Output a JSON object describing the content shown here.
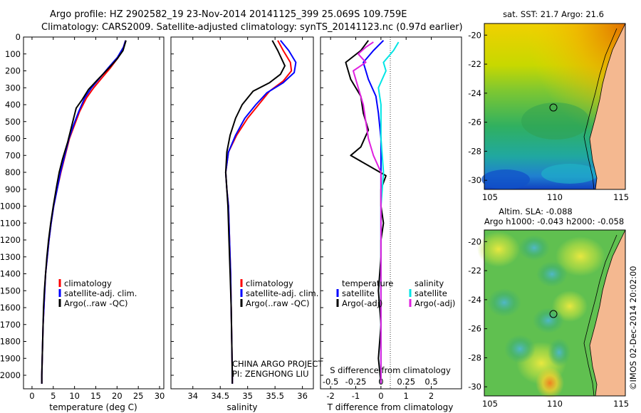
{
  "header": {
    "line1": "Argo profile: HZ 2902582_19 23-Nov-2014 20141125_399 25.069S 109.759E",
    "line2": "Climatology: CARS2009. Satellite-adjusted climatology: synTS_20141123.nc (0.97d earlier)"
  },
  "colors": {
    "climatology": "#ff0000",
    "satellite": "#0000ff",
    "argo": "#000000",
    "sat_salinity": "#00e5e5",
    "argo_salinity": "#e020e0",
    "land": "#f4b890"
  },
  "chart_data": [
    {
      "id": "temperature",
      "type": "line",
      "xlabel": "temperature (deg C)",
      "ylabel": "",
      "xlim": [
        -2,
        31
      ],
      "ylim": [
        2080,
        0
      ],
      "xticks": [
        0,
        5,
        10,
        15,
        20,
        25,
        30
      ],
      "yticks": [
        0,
        100,
        200,
        300,
        400,
        500,
        600,
        700,
        800,
        900,
        1000,
        1100,
        1200,
        1300,
        1400,
        1500,
        1600,
        1700,
        1800,
        1900,
        2000
      ],
      "legend": [
        "climatology",
        "satellite-adj. clim.",
        "Argo(..raw -QC)"
      ],
      "series": [
        {
          "name": "climatology",
          "color": "#ff0000",
          "points": [
            [
              22,
              20
            ],
            [
              21.5,
              60
            ],
            [
              20.3,
              120
            ],
            [
              18.5,
              180
            ],
            [
              16.5,
              240
            ],
            [
              14.5,
              300
            ],
            [
              12.8,
              360
            ],
            [
              11.2,
              440
            ],
            [
              10,
              520
            ],
            [
              8.8,
              600
            ],
            [
              7.8,
              700
            ],
            [
              6.8,
              800
            ],
            [
              5.9,
              900
            ],
            [
              5.1,
              1000
            ],
            [
              4.5,
              1100
            ],
            [
              4,
              1200
            ],
            [
              3.6,
              1300
            ],
            [
              3.2,
              1400
            ],
            [
              3,
              1500
            ],
            [
              2.8,
              1600
            ],
            [
              2.6,
              1700
            ],
            [
              2.5,
              1800
            ],
            [
              2.4,
              1900
            ],
            [
              2.3,
              2000
            ],
            [
              2.3,
              2050
            ]
          ]
        },
        {
          "name": "satellite-adj. clim.",
          "color": "#0000ff",
          "points": [
            [
              22,
              20
            ],
            [
              21.5,
              60
            ],
            [
              20.1,
              120
            ],
            [
              18,
              180
            ],
            [
              16,
              240
            ],
            [
              14,
              300
            ],
            [
              12.4,
              360
            ],
            [
              11,
              440
            ],
            [
              9.8,
              520
            ],
            [
              8.7,
              600
            ],
            [
              7.7,
              700
            ],
            [
              6.7,
              800
            ],
            [
              5.9,
              900
            ],
            [
              5.1,
              1000
            ],
            [
              4.5,
              1100
            ],
            [
              4,
              1200
            ],
            [
              3.6,
              1300
            ],
            [
              3.2,
              1400
            ],
            [
              3,
              1500
            ],
            [
              2.8,
              1600
            ],
            [
              2.6,
              1700
            ],
            [
              2.5,
              1800
            ],
            [
              2.4,
              1900
            ],
            [
              2.3,
              2000
            ],
            [
              2.3,
              2050
            ]
          ]
        },
        {
          "name": "Argo(..raw -QC)",
          "color": "#000000",
          "points": [
            [
              22.1,
              20
            ],
            [
              21.4,
              80
            ],
            [
              20,
              130
            ],
            [
              18.2,
              180
            ],
            [
              15.5,
              250
            ],
            [
              13.3,
              310
            ],
            [
              11.8,
              370
            ],
            [
              10.4,
              420
            ],
            [
              9.6,
              500
            ],
            [
              8.4,
              620
            ],
            [
              7.2,
              720
            ],
            [
              6.4,
              800
            ],
            [
              5.8,
              880
            ],
            [
              5,
              1000
            ],
            [
              4.4,
              1100
            ],
            [
              3.9,
              1200
            ],
            [
              3.5,
              1300
            ],
            [
              3.2,
              1400
            ],
            [
              2.9,
              1500
            ],
            [
              2.7,
              1600
            ],
            [
              2.6,
              1700
            ],
            [
              2.5,
              1800
            ],
            [
              2.4,
              1900
            ],
            [
              2.3,
              2000
            ],
            [
              2.3,
              2050
            ]
          ]
        }
      ]
    },
    {
      "id": "salinity",
      "type": "line",
      "xlabel": "salinity",
      "xlim": [
        33.6,
        36.2
      ],
      "ylim": [
        2080,
        0
      ],
      "xticks": [
        34,
        34.5,
        35,
        35.5,
        36
      ],
      "legend": [
        "climatology",
        "satellite-adj. clim.",
        "Argo(..raw -QC)"
      ],
      "annotation": [
        "CHINA ARGO PROJECT",
        "PI: ZENGHONG LIU"
      ],
      "series": [
        {
          "name": "climatology",
          "color": "#ff0000",
          "points": [
            [
              35.55,
              20
            ],
            [
              35.65,
              80
            ],
            [
              35.78,
              150
            ],
            [
              35.8,
              200
            ],
            [
              35.65,
              260
            ],
            [
              35.4,
              320
            ],
            [
              35.2,
              400
            ],
            [
              35,
              480
            ],
            [
              34.8,
              580
            ],
            [
              34.65,
              680
            ],
            [
              34.6,
              800
            ],
            [
              34.62,
              900
            ],
            [
              34.65,
              1000
            ],
            [
              34.67,
              1200
            ],
            [
              34.69,
              1400
            ],
            [
              34.7,
              1600
            ],
            [
              34.71,
              1800
            ],
            [
              34.72,
              2000
            ],
            [
              34.72,
              2050
            ]
          ]
        },
        {
          "name": "satellite-adj. clim.",
          "color": "#0000ff",
          "points": [
            [
              35.6,
              20
            ],
            [
              35.75,
              80
            ],
            [
              35.88,
              150
            ],
            [
              35.85,
              210
            ],
            [
              35.65,
              270
            ],
            [
              35.35,
              330
            ],
            [
              35.15,
              400
            ],
            [
              34.95,
              480
            ],
            [
              34.78,
              580
            ],
            [
              34.65,
              680
            ],
            [
              34.6,
              800
            ],
            [
              34.62,
              900
            ],
            [
              34.65,
              1000
            ],
            [
              34.67,
              1200
            ],
            [
              34.69,
              1400
            ],
            [
              34.7,
              1600
            ],
            [
              34.71,
              1800
            ],
            [
              34.72,
              2000
            ],
            [
              34.72,
              2050
            ]
          ]
        },
        {
          "name": "Argo(..raw -QC)",
          "color": "#000000",
          "points": [
            [
              35.45,
              20
            ],
            [
              35.55,
              80
            ],
            [
              35.68,
              170
            ],
            [
              35.6,
              220
            ],
            [
              35.4,
              270
            ],
            [
              35.1,
              320
            ],
            [
              34.9,
              400
            ],
            [
              34.78,
              480
            ],
            [
              34.68,
              580
            ],
            [
              34.62,
              680
            ],
            [
              34.6,
              800
            ],
            [
              34.62,
              900
            ],
            [
              34.64,
              1000
            ],
            [
              34.66,
              1200
            ],
            [
              34.68,
              1400
            ],
            [
              34.7,
              1600
            ],
            [
              34.71,
              1800
            ],
            [
              34.72,
              2000
            ],
            [
              34.72,
              2050
            ]
          ]
        }
      ]
    },
    {
      "id": "difference",
      "type": "line",
      "xlabel": "T difference from climatology",
      "xlabel_top": "S difference from climatology",
      "xlim": [
        -2.4,
        3.2
      ],
      "ylim": [
        2080,
        0
      ],
      "xticks": [
        -2,
        -1,
        0,
        1,
        2
      ],
      "xticks_top": [
        [
          "-0.5",
          -2
        ],
        [
          "-0.25",
          -1
        ],
        [
          "0",
          0
        ],
        [
          "0.25",
          1
        ],
        [
          "0.5",
          2
        ]
      ],
      "legend_left_title": "temperature",
      "legend_right_title": "salinity",
      "legend_left": [
        "satellite",
        "Argo(-adj)"
      ],
      "legend_right": [
        "satellite",
        "Argo(-adj)"
      ],
      "series": [
        {
          "name": "T satellite",
          "color": "#0000ff",
          "points": [
            [
              0.1,
              20
            ],
            [
              -0.3,
              80
            ],
            [
              -0.7,
              150
            ],
            [
              -0.5,
              250
            ],
            [
              -0.2,
              350
            ],
            [
              -0.1,
              450
            ],
            [
              0,
              600
            ],
            [
              0,
              800
            ],
            [
              0,
              1200
            ],
            [
              0,
              1600
            ],
            [
              0,
              2050
            ]
          ]
        },
        {
          "name": "T Argo(-adj)",
          "color": "#000000",
          "points": [
            [
              -0.5,
              20
            ],
            [
              -0.8,
              80
            ],
            [
              -1.4,
              150
            ],
            [
              -1.2,
              250
            ],
            [
              -0.8,
              350
            ],
            [
              -0.7,
              450
            ],
            [
              -0.5,
              550
            ],
            [
              -0.8,
              650
            ],
            [
              -1.2,
              700
            ],
            [
              -0.5,
              760
            ],
            [
              0.2,
              820
            ],
            [
              0,
              900
            ],
            [
              0,
              1000
            ],
            [
              0.1,
              1100
            ],
            [
              0,
              1200
            ],
            [
              0,
              1300
            ],
            [
              -0.1,
              1500
            ],
            [
              0,
              1700
            ],
            [
              -0.1,
              1900
            ],
            [
              0,
              2050
            ]
          ]
        },
        {
          "name": "S satellite",
          "color": "#00e5e5",
          "points": [
            [
              0.7,
              30
            ],
            [
              0.5,
              80
            ],
            [
              0.1,
              150
            ],
            [
              0.2,
              200
            ],
            [
              -0.1,
              300
            ],
            [
              0,
              400
            ],
            [
              0,
              600
            ],
            [
              0.1,
              800
            ],
            [
              0,
              1000
            ],
            [
              0,
              1300
            ],
            [
              0,
              1600
            ],
            [
              0,
              2050
            ]
          ]
        },
        {
          "name": "S Argo(-adj)",
          "color": "#e020e0",
          "points": [
            [
              -0.3,
              30
            ],
            [
              -0.6,
              60
            ],
            [
              -0.9,
              100
            ],
            [
              -0.6,
              150
            ],
            [
              -1.1,
              200
            ],
            [
              -0.9,
              300
            ],
            [
              -0.7,
              400
            ],
            [
              -0.6,
              500
            ],
            [
              -0.5,
              600
            ],
            [
              -0.3,
              700
            ],
            [
              0,
              800
            ],
            [
              0,
              900
            ],
            [
              0,
              1100
            ],
            [
              0,
              1400
            ],
            [
              0,
              1800
            ],
            [
              0,
              2050
            ]
          ]
        }
      ]
    }
  ],
  "maps": [
    {
      "id": "sst",
      "title": "sat. SST: 21.7 Argo: 21.6",
      "subtitle": "",
      "xticks": [
        "105",
        "110",
        "115"
      ],
      "yticks": [
        "-20",
        "-22",
        "-24",
        "-26",
        "-28",
        "-30"
      ]
    },
    {
      "id": "sla",
      "title": "Altim. SLA: -0.088",
      "subtitle": "Argo h1000: -0.043 h2000: -0.058",
      "xticks": [
        "105",
        "110",
        "115"
      ],
      "yticks": [
        "-20",
        "-22",
        "-24",
        "-26",
        "-28",
        "-30"
      ]
    }
  ],
  "footer": {
    "credit": "©IMOS 02-Dec-2014 20:02:00"
  }
}
